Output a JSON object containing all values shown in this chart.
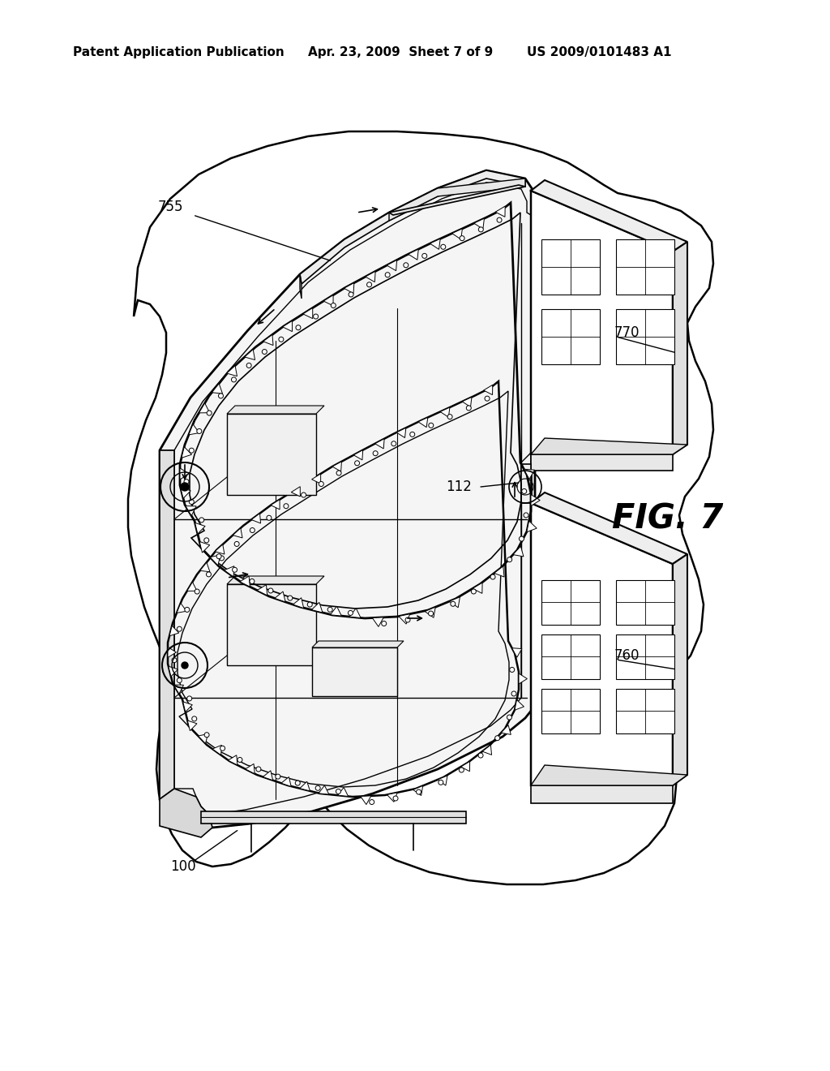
{
  "background_color": "#ffffff",
  "header_left": "Patent Application Publication",
  "header_center": "Apr. 23, 2009  Sheet 7 of 9",
  "header_right": "US 2009/0101483 A1",
  "fig_label": "FIG. 7",
  "header_fontsize": 11,
  "label_fontsize": 12,
  "fig_label_fontsize": 30,
  "line_color": "#000000"
}
